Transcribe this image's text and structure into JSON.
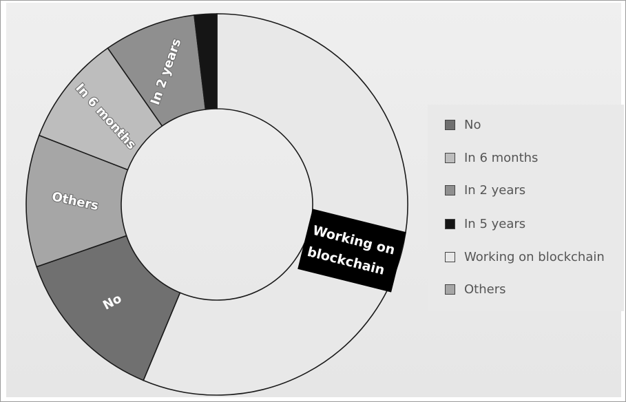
{
  "chart_data": {
    "type": "pie",
    "style": "donut",
    "slices": [
      {
        "label": "Working on blockchain",
        "value": 56.3,
        "color": "#e8e8e8"
      },
      {
        "label": "No",
        "value": 13.4,
        "color": "#707070"
      },
      {
        "label": "Others",
        "value": 11.2,
        "color": "#a6a6a6"
      },
      {
        "label": "In 6 months",
        "value": 9.4,
        "color": "#bdbdbd"
      },
      {
        "label": "In 2 years",
        "value": 7.8,
        "color": "#8f8f8f"
      },
      {
        "label": "In 5 years",
        "value": 1.9,
        "color": "#151515"
      }
    ],
    "legend": {
      "placement": "right",
      "entries": [
        {
          "label": "No",
          "color": "#707070"
        },
        {
          "label": "In 6 months",
          "color": "#bdbdbd"
        },
        {
          "label": "In 2 years",
          "color": "#8f8f8f"
        },
        {
          "label": "In 5 years",
          "color": "#151515"
        },
        {
          "label": "Working on blockchain",
          "color": "#e8e8e8"
        },
        {
          "label": "Others",
          "color": "#a6a6a6"
        }
      ]
    },
    "callout": {
      "lines": [
        "Working on",
        "blockchain"
      ],
      "background": "#000000"
    }
  }
}
